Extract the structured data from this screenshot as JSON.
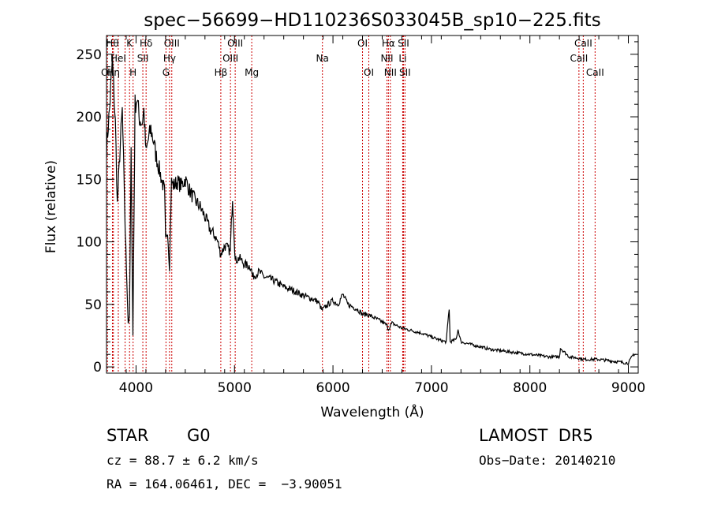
{
  "chart_data": {
    "type": "line",
    "title": "spec−56699−HD110236S033045B_sp10−225.fits",
    "xlabel": "Wavelength (Å)",
    "ylabel": "Flux (relative)",
    "xlim": [
      3700,
      9100
    ],
    "ylim": [
      -5,
      265
    ],
    "xticks": [
      4000,
      5000,
      6000,
      7000,
      8000,
      9000
    ],
    "yticks": [
      0,
      50,
      100,
      150,
      200,
      250
    ],
    "grid": false,
    "series": [
      {
        "x": [
          3700,
          3730,
          3760,
          3790,
          3810,
          3835,
          3860,
          3890,
          3920,
          3933,
          3950,
          3968,
          3990,
          4010,
          4030,
          4060,
          4080,
          4101,
          4120,
          4150,
          4180,
          4200,
          4230,
          4260,
          4290,
          4300,
          4320,
          4340,
          4360,
          4380,
          4420,
          4460,
          4500,
          4550,
          4600,
          4650,
          4700,
          4750,
          4800,
          4830,
          4861,
          4900,
          4930,
          4957,
          4980,
          5007,
          5050,
          5100,
          5167,
          5183,
          5250,
          5300,
          5400,
          5500,
          5600,
          5700,
          5800,
          5850,
          5890,
          5896,
          5950,
          6000,
          6050,
          6100,
          6150,
          6200,
          6250,
          6300,
          6350,
          6400,
          6450,
          6500,
          6550,
          6563,
          6600,
          6650,
          6700,
          6750,
          6800,
          6900,
          7000,
          7100,
          7150,
          7180,
          7190,
          7250,
          7270,
          7300,
          7400,
          7500,
          7600,
          7700,
          7800,
          7900,
          8000,
          8100,
          8200,
          8300,
          8310,
          8400,
          8500,
          8542,
          8600,
          8662,
          8700,
          8800,
          8900,
          9000,
          9050,
          9080
        ],
        "y": [
          175,
          205,
          245,
          195,
          130,
          170,
          205,
          110,
          35,
          40,
          170,
          25,
          210,
          215,
          200,
          195,
          205,
          170,
          180,
          190,
          180,
          170,
          160,
          150,
          140,
          100,
          110,
          80,
          148,
          145,
          148,
          145,
          150,
          140,
          133,
          128,
          120,
          110,
          105,
          100,
          90,
          97,
          95,
          92,
          137,
          85,
          87,
          82,
          80,
          72,
          76,
          72,
          69,
          64,
          61,
          57,
          54,
          52,
          45,
          46,
          50,
          53,
          50,
          58,
          50,
          48,
          46,
          42,
          42,
          40,
          38,
          36,
          33,
          30,
          35,
          33,
          31,
          30,
          29,
          27,
          24,
          21,
          20,
          47,
          20,
          22,
          30,
          20,
          18,
          16,
          14,
          13,
          12,
          11,
          10,
          9,
          8,
          8,
          15,
          8,
          7,
          6,
          6,
          6,
          6,
          5,
          4,
          3,
          10,
          10
        ]
      }
    ],
    "lines": [
      {
        "x": 3710,
        "label": "OII",
        "row": 2
      },
      {
        "x": 3760,
        "label": "Hθ",
        "row": 0
      },
      {
        "x": 3770,
        "label": "Hη",
        "row": 2
      },
      {
        "x": 3820,
        "label": "HeI",
        "row": 1
      },
      {
        "x": 3889,
        "label": "",
        "row": 0
      },
      {
        "x": 3934,
        "label": "K",
        "row": 0
      },
      {
        "x": 3970,
        "label": "H",
        "row": 2
      },
      {
        "x": 4069,
        "label": "SII",
        "row": 1
      },
      {
        "x": 4102,
        "label": "Hδ",
        "row": 0
      },
      {
        "x": 4304,
        "label": "G",
        "row": 2
      },
      {
        "x": 4340,
        "label": "Hγ",
        "row": 1
      },
      {
        "x": 4363,
        "label": "OIII",
        "row": 0
      },
      {
        "x": 4861,
        "label": "Hβ",
        "row": 2
      },
      {
        "x": 4959,
        "label": "OIII",
        "row": 1
      },
      {
        "x": 5007,
        "label": "OIII",
        "row": 0
      },
      {
        "x": 5175,
        "label": "Mg",
        "row": 2
      },
      {
        "x": 5893,
        "label": "Na",
        "row": 1
      },
      {
        "x": 6300,
        "label": "OI",
        "row": 0
      },
      {
        "x": 6364,
        "label": "OI",
        "row": 2
      },
      {
        "x": 6548,
        "label": "NII",
        "row": 1
      },
      {
        "x": 6563,
        "label": "Hα",
        "row": 0
      },
      {
        "x": 6583,
        "label": "NII",
        "row": 2
      },
      {
        "x": 6708,
        "label": "Li",
        "row": 1
      },
      {
        "x": 6716,
        "label": "SII",
        "row": 0
      },
      {
        "x": 6731,
        "label": "SII",
        "row": 2
      },
      {
        "x": 8498,
        "label": "CaII",
        "row": 1
      },
      {
        "x": 8542,
        "label": "CaII",
        "row": 0
      },
      {
        "x": 8662,
        "label": "CaII",
        "row": 2
      }
    ],
    "line_color": "#cc0000"
  },
  "footer": {
    "object_class": "STAR",
    "subclass": "G0",
    "survey": "LAMOST  DR5",
    "redshift": "cz = 88.7 ± 6.2 km/s",
    "obs_date": "Obs−Date: 20140210",
    "coords": "RA = 164.06461, DEC =  −3.90051"
  }
}
